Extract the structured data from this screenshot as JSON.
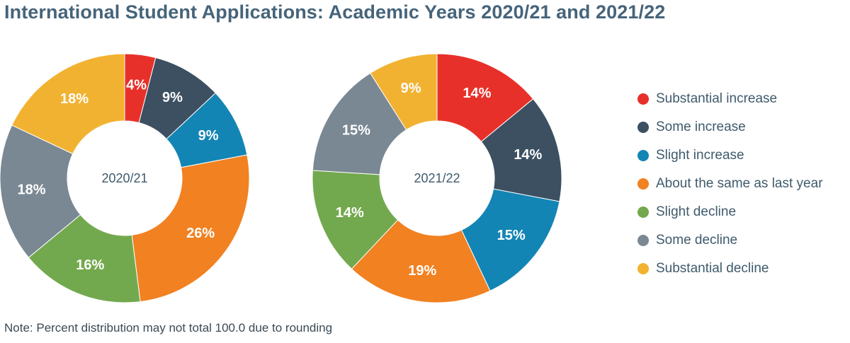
{
  "title": "International Student Applications:  Academic Years 2020/21 and 2021/22",
  "note": "Note: Percent distribution may not total 100.0 due to rounding",
  "chart_data": [
    {
      "type": "pie",
      "center_label": "2020/21",
      "categories": [
        "Substantial increase",
        "Some increase",
        "Slight increase",
        "About the same as last year",
        "Slight decline",
        "Some decline",
        "Substantial decline"
      ],
      "values": [
        4,
        9,
        9,
        26,
        16,
        18,
        18
      ],
      "labels": [
        "4%",
        "9%",
        "9%",
        "26%",
        "16%",
        "18%",
        "18%"
      ]
    },
    {
      "type": "pie",
      "center_label": "2021/22",
      "categories": [
        "Substantial increase",
        "Some increase",
        "Slight increase",
        "About the same as last year",
        "Slight decline",
        "Some decline",
        "Substantial decline"
      ],
      "values": [
        14,
        14,
        15,
        19,
        14,
        15,
        9
      ],
      "labels": [
        "14%",
        "14%",
        "15%",
        "19%",
        "14%",
        "15%",
        "9%"
      ]
    }
  ],
  "legend": {
    "placement": "right",
    "items": [
      {
        "label": "Substantial increase",
        "color": "#e8302a"
      },
      {
        "label": "Some increase",
        "color": "#3c5061"
      },
      {
        "label": "Slight increase",
        "color": "#1385b4"
      },
      {
        "label": "About the same as last year",
        "color": "#f18121"
      },
      {
        "label": "Slight decline",
        "color": "#73a94e"
      },
      {
        "label": "Some decline",
        "color": "#7a8893"
      },
      {
        "label": "Substantial decline",
        "color": "#f2b231"
      }
    ]
  }
}
